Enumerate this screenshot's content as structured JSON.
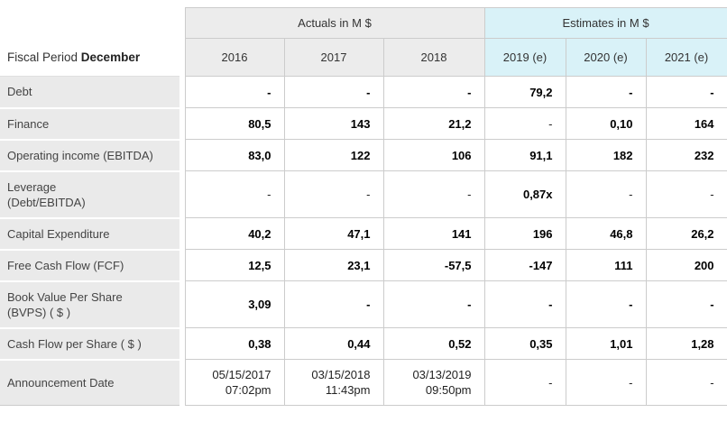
{
  "header": {
    "fiscal_period_prefix": "Fiscal Period",
    "fiscal_period_value": "December",
    "groups": [
      {
        "label": "Actuals in M $"
      },
      {
        "label": "Estimates in M $"
      }
    ],
    "years": [
      "2016",
      "2017",
      "2018",
      "2019 (e)",
      "2020 (e)",
      "2021 (e)"
    ]
  },
  "colors": {
    "actuals_bg": "#ececec",
    "estimates_bg": "#d9f2f8",
    "label_bg": "#eaeaea",
    "border": "#cccccc"
  },
  "rows": [
    {
      "label": "Debt",
      "label2": "",
      "cells": [
        {
          "v": "-",
          "b": true
        },
        {
          "v": "-",
          "b": true
        },
        {
          "v": "-",
          "b": true
        },
        {
          "v": "79,2",
          "b": true
        },
        {
          "v": "-",
          "b": true
        },
        {
          "v": "-",
          "b": true
        }
      ]
    },
    {
      "label": "Finance",
      "label2": "",
      "cells": [
        {
          "v": "80,5",
          "b": true
        },
        {
          "v": "143",
          "b": true
        },
        {
          "v": "21,2",
          "b": true
        },
        {
          "v": "-",
          "b": false
        },
        {
          "v": "0,10",
          "b": true
        },
        {
          "v": "164",
          "b": true
        }
      ]
    },
    {
      "label": "Operating income (EBITDA)",
      "label2": "",
      "cells": [
        {
          "v": "83,0",
          "b": true
        },
        {
          "v": "122",
          "b": true
        },
        {
          "v": "106",
          "b": true
        },
        {
          "v": "91,1",
          "b": true
        },
        {
          "v": "182",
          "b": true
        },
        {
          "v": "232",
          "b": true
        }
      ]
    },
    {
      "label": "Leverage",
      "label2": "(Debt/EBITDA)",
      "cells": [
        {
          "v": "-",
          "b": false
        },
        {
          "v": "-",
          "b": false
        },
        {
          "v": "-",
          "b": false
        },
        {
          "v": "0,87x",
          "b": true
        },
        {
          "v": "-",
          "b": false
        },
        {
          "v": "-",
          "b": false
        }
      ]
    },
    {
      "label": "Capital Expenditure",
      "label2": "",
      "cells": [
        {
          "v": "40,2",
          "b": true
        },
        {
          "v": "47,1",
          "b": true
        },
        {
          "v": "141",
          "b": true
        },
        {
          "v": "196",
          "b": true
        },
        {
          "v": "46,8",
          "b": true
        },
        {
          "v": "26,2",
          "b": true
        }
      ]
    },
    {
      "label": "Free Cash Flow (FCF)",
      "label2": "",
      "cells": [
        {
          "v": "12,5",
          "b": true
        },
        {
          "v": "23,1",
          "b": true
        },
        {
          "v": "-57,5",
          "b": true
        },
        {
          "v": "-147",
          "b": true
        },
        {
          "v": "111",
          "b": true
        },
        {
          "v": "200",
          "b": true
        }
      ]
    },
    {
      "label": "Book Value Per Share",
      "label2": "(BVPS) ( $ )",
      "cells": [
        {
          "v": "3,09",
          "b": true
        },
        {
          "v": "-",
          "b": true
        },
        {
          "v": "-",
          "b": true
        },
        {
          "v": "-",
          "b": true
        },
        {
          "v": "-",
          "b": true
        },
        {
          "v": "-",
          "b": true
        }
      ]
    },
    {
      "label": "Cash Flow per Share ( $ )",
      "label2": "",
      "cells": [
        {
          "v": "0,38",
          "b": true
        },
        {
          "v": "0,44",
          "b": true
        },
        {
          "v": "0,52",
          "b": true
        },
        {
          "v": "0,35",
          "b": true
        },
        {
          "v": "1,01",
          "b": true
        },
        {
          "v": "1,28",
          "b": true
        }
      ]
    },
    {
      "label": "Announcement Date",
      "label2": "",
      "cells": [
        {
          "v": "05/15/2017",
          "v2": "07:02pm",
          "b": false
        },
        {
          "v": "03/15/2018",
          "v2": "11:43pm",
          "b": false
        },
        {
          "v": "03/13/2019",
          "v2": "09:50pm",
          "b": false
        },
        {
          "v": "-",
          "b": false
        },
        {
          "v": "-",
          "b": false
        },
        {
          "v": "-",
          "b": false
        }
      ]
    }
  ]
}
